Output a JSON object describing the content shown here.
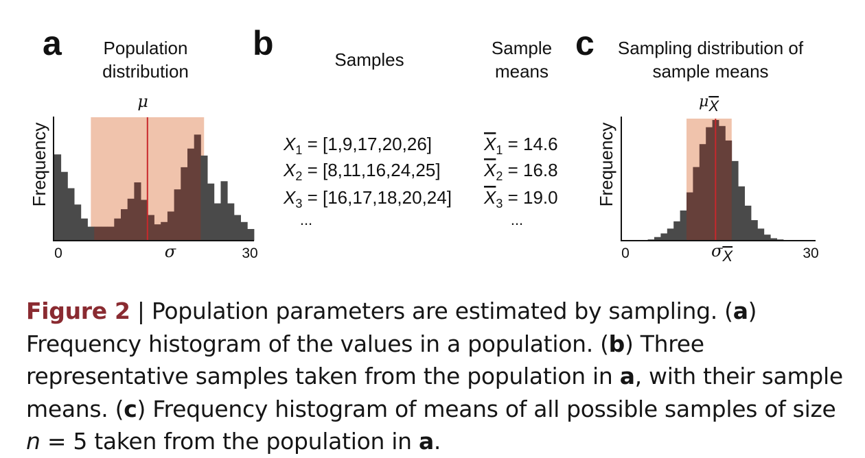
{
  "panel_a": {
    "letter": "a",
    "title_line1": "Population",
    "title_line2": "distribution",
    "ylabel": "Frequency",
    "mu_label": "μ",
    "sigma_label": "σ",
    "x_min_label": "0",
    "x_max_label": "30"
  },
  "panel_b": {
    "letter": "b",
    "samples_header": "Samples",
    "means_header_line1": "Sample",
    "means_header_line2": "means",
    "rows": [
      {
        "var": "X",
        "sub": "1",
        "values": " = [1,9,17,20,26]",
        "mean_var": "X",
        "mean_sub": "1",
        "mean_value": " = 14.6"
      },
      {
        "var": "X",
        "sub": "2",
        "values": " = [8,11,16,24,25]",
        "mean_var": "X",
        "mean_sub": "2",
        "mean_value": " = 16.8"
      },
      {
        "var": "X",
        "sub": "3",
        "values": " = [16,17,18,20,24]",
        "mean_var": "X",
        "mean_sub": "3",
        "mean_value": " = 19.0"
      }
    ],
    "ellipsis": "..."
  },
  "panel_c": {
    "letter": "c",
    "title_line1": "Sampling distribution of",
    "title_line2": "sample means",
    "ylabel": "Frequency",
    "mu_label": "μ",
    "mu_sub": "X",
    "sigma_label": "σ",
    "sigma_sub": "X",
    "x_min_label": "0",
    "x_max_label": "30"
  },
  "caption": {
    "figure_label": "Figure 2",
    "sep": " | ",
    "t1": "Population parameters are estimated by sampling. (",
    "a1": "a",
    "t2": ") Frequency histogram of the values in a population. (",
    "b1": "b",
    "t3": ") Three representative samples taken from the population in ",
    "a2": "a",
    "t4": ", with their sample means. (",
    "c1": "c",
    "t5": ") Frequency histogram of means of all possible samples of size ",
    "n": "n",
    "t6": " = 5 taken from the population in ",
    "a3": "a",
    "t7": "."
  },
  "colors": {
    "bar": "#4a4a4a",
    "band": "#f0c3ac",
    "bar_in_band": "#66403a",
    "mean_line": "#c8282c",
    "caption_label": "#8a2b31"
  },
  "chart_data": [
    {
      "type": "bar",
      "title": "Population distribution",
      "ylabel": "Frequency",
      "xlim": [
        0,
        30
      ],
      "x_tick_labels": [
        "0",
        "30"
      ],
      "bin_count": 30,
      "values": [
        0.74,
        0.59,
        0.45,
        0.31,
        0.19,
        0.12,
        0.12,
        0.12,
        0.12,
        0.19,
        0.27,
        0.36,
        0.5,
        0.35,
        0.22,
        0.14,
        0.16,
        0.25,
        0.44,
        0.63,
        0.79,
        0.91,
        0.73,
        0.49,
        0.32,
        0.51,
        0.32,
        0.22,
        0.16,
        0.1
      ],
      "shaded_range": [
        5.5,
        22.5
      ],
      "mean_line_x": 14,
      "annotations": [
        "μ",
        "σ"
      ]
    },
    {
      "type": "bar",
      "title": "Sampling distribution of sample means",
      "ylabel": "Frequency",
      "xlim": [
        0,
        30
      ],
      "x_tick_labels": [
        "0",
        "30"
      ],
      "bin_count": 30,
      "values": [
        0,
        0,
        0,
        0,
        0.01,
        0.03,
        0.06,
        0.1,
        0.16,
        0.25,
        0.4,
        0.61,
        0.8,
        0.94,
        1.0,
        0.95,
        0.83,
        0.66,
        0.45,
        0.29,
        0.17,
        0.1,
        0.05,
        0.02,
        0.01,
        0,
        0,
        0,
        0,
        0
      ],
      "shaded_range": [
        10,
        17
      ],
      "mean_line_x": 14.5,
      "annotations": [
        "μX̄",
        "σX̄"
      ]
    }
  ]
}
